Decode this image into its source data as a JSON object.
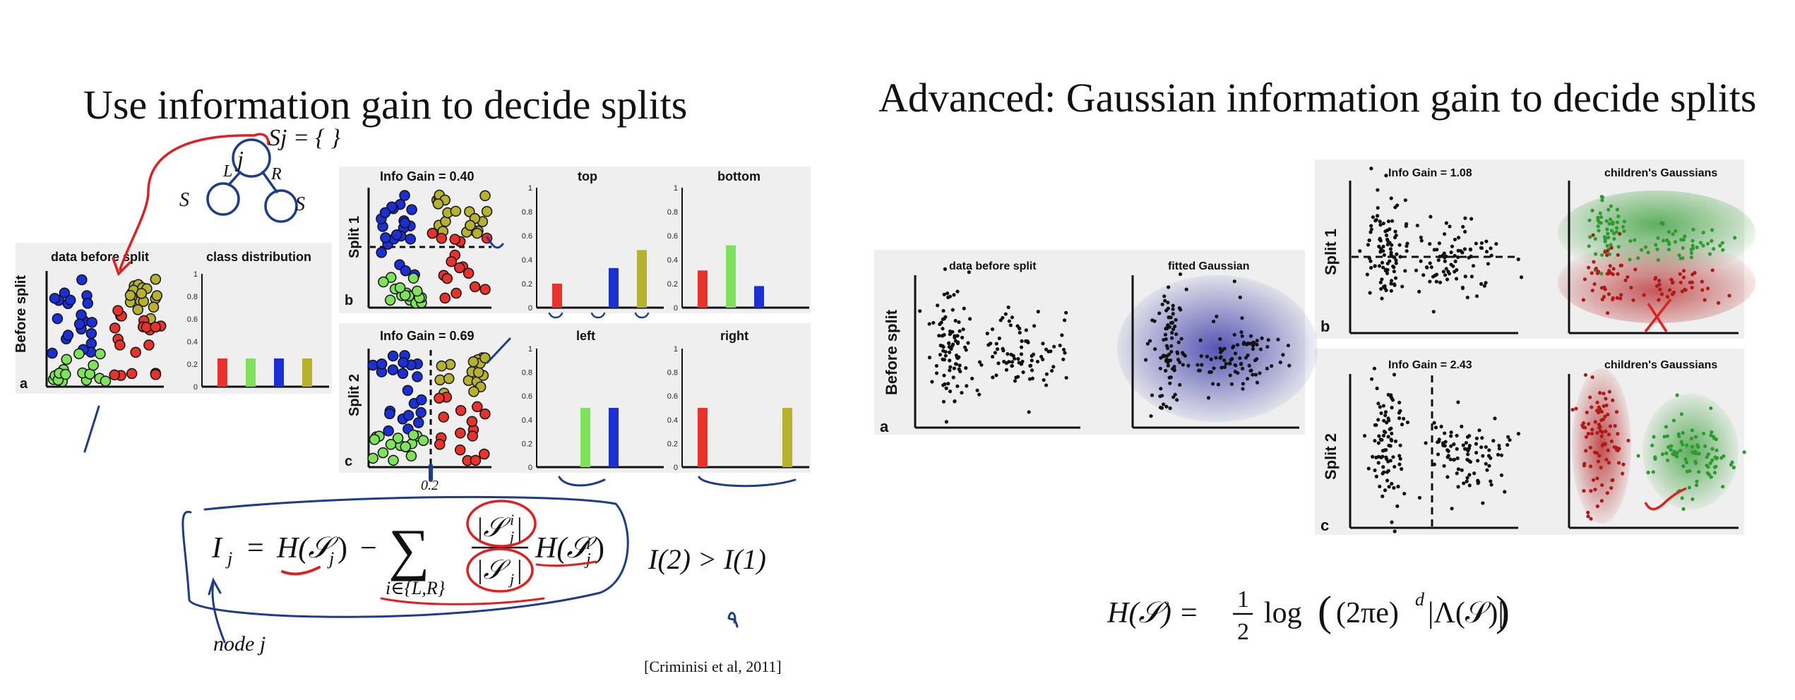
{
  "left_slide": {
    "title": "Use information gain to decide splits",
    "citation": "[Criminisi et al, 2011]",
    "before": {
      "row_label": "Before split",
      "letter": "a",
      "scatter_title": "data before split",
      "dist_title": "class distribution"
    },
    "split1": {
      "row_label": "Split 1",
      "letter": "b",
      "scatter_title": "Info Gain = 0.40",
      "left_hist_title": "top",
      "right_hist_title": "bottom"
    },
    "split2": {
      "row_label": "Split 2",
      "letter": "c",
      "scatter_title": "Info Gain = 0.69",
      "left_hist_title": "left",
      "right_hist_title": "right"
    },
    "formula": {
      "lhs": "I",
      "lhs_sub": "j",
      "eq": "=",
      "entropy_parent": "H(𝒮",
      "minus": "−",
      "sum": "∑",
      "sum_sub": "i∈{L,R}",
      "frac_num": "|𝒮",
      "frac_den": "|𝒮",
      "entropy_child": "H(𝒮"
    },
    "annotations": {
      "node_label": "node j",
      "sj_label": "Sj = {   }",
      "sjl": "S",
      "sjr": "S",
      "node_L": "L",
      "node_R": "R",
      "node_j": "j",
      "compare": "I(2) > I(1)",
      "threshold": "0.2"
    }
  },
  "right_slide": {
    "title": "Advanced: Gaussian information gain to decide splits",
    "before": {
      "row_label": "Before split",
      "letter": "a",
      "scatter_title": "data before split",
      "gauss_title": "fitted Gaussian"
    },
    "split1": {
      "row_label": "Split 1",
      "letter": "b",
      "scatter_title": "Info Gain = 1.08",
      "gauss_title": "children's Gaussians"
    },
    "split2": {
      "row_label": "Split 2",
      "letter": "c",
      "scatter_title": "Info Gain = 2.43",
      "gauss_title": "children's Gaussians"
    },
    "formula": {
      "lhs": "H(𝒮) =",
      "half_num": "1",
      "half_den": "2",
      "log": "log",
      "body": "(2πe)",
      "exp": "d",
      "det": "|Λ(𝒮)|"
    }
  },
  "chart_data": [
    {
      "type": "bar",
      "title": "class distribution",
      "categories": [
        "red",
        "green",
        "blue",
        "olive"
      ],
      "values": [
        0.25,
        0.25,
        0.25,
        0.25
      ],
      "ylim": [
        0,
        1
      ],
      "yticks": [
        "0",
        "0.2",
        "0.4",
        "0.6",
        "0.8",
        "1"
      ]
    },
    {
      "type": "bar",
      "title": "top",
      "categories": [
        "red",
        "green",
        "blue",
        "olive"
      ],
      "values": [
        0.2,
        0.0,
        0.33,
        0.48
      ],
      "ylim": [
        0,
        1
      ],
      "yticks": [
        "0",
        "0.2",
        "0.4",
        "0.6",
        "0.8",
        "1"
      ]
    },
    {
      "type": "bar",
      "title": "bottom",
      "categories": [
        "red",
        "green",
        "blue",
        "olive"
      ],
      "values": [
        0.31,
        0.52,
        0.18,
        0.0
      ],
      "ylim": [
        0,
        1
      ],
      "yticks": [
        "0",
        "0.2",
        "0.4",
        "0.6",
        "0.8",
        "1"
      ]
    },
    {
      "type": "bar",
      "title": "left",
      "categories": [
        "red",
        "green",
        "blue",
        "olive"
      ],
      "values": [
        0.0,
        0.5,
        0.5,
        0.0
      ],
      "ylim": [
        0,
        1
      ],
      "yticks": [
        "0",
        "0.2",
        "0.4",
        "0.6",
        "0.8",
        "1"
      ]
    },
    {
      "type": "bar",
      "title": "right",
      "categories": [
        "red",
        "green",
        "blue",
        "olive"
      ],
      "values": [
        0.5,
        0.0,
        0.0,
        0.5
      ],
      "ylim": [
        0,
        1
      ],
      "yticks": [
        "0",
        "0.2",
        "0.4",
        "0.6",
        "0.8",
        "1"
      ]
    }
  ],
  "colors": {
    "red": "#e8322a",
    "green": "#7ee35a",
    "blue": "#1a2fd6",
    "olive": "#b6b22e",
    "ink_red": "#e02020",
    "ink_blue": "#1e3c8c",
    "gauss_blue": "#6c6cc4",
    "gauss_green": "#2e9a2e",
    "gauss_red": "#b01818"
  }
}
